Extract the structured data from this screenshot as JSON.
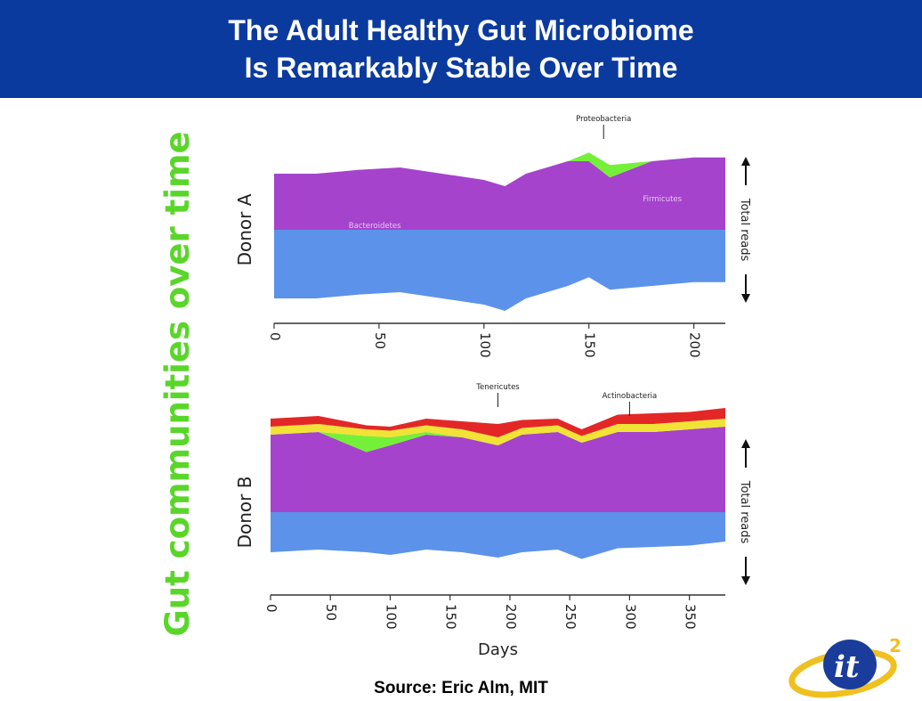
{
  "header": {
    "title_line1": "The Adult Healthy Gut Microbiome",
    "title_line2": "Is Remarkably Stable Over Time"
  },
  "side_label": "Gut communities over time",
  "source": "Source: Eric Alm, MIT",
  "logo": {
    "text": "it",
    "superscript": "2"
  },
  "colors": {
    "header_bg": "#0a3a9e",
    "side_label": "#5ad62a",
    "bacteroidetes": "#4a86e8",
    "firmicutes": "#9b2fc7",
    "proteobacteria": "#66ee22",
    "tenericutes": "#e01010",
    "actinobacteria": "#f0e020"
  },
  "chart_data": [
    {
      "type": "area",
      "panel_label": "Donor A",
      "right_label": "Total reads",
      "xlabel": "",
      "xlim": [
        0,
        215
      ],
      "x_ticks": [
        0,
        50,
        100,
        150,
        200
      ],
      "annotations": [
        {
          "text": "Proteobacteria",
          "x": 157,
          "arrow": true
        },
        {
          "text": "Firmicutes",
          "x": 185
        },
        {
          "text": "Bacteroidetes",
          "x": 48
        }
      ],
      "series": [
        {
          "name": "Bacteroidetes",
          "x": [
            0,
            20,
            40,
            60,
            80,
            100,
            110,
            120,
            130,
            140,
            150,
            160,
            180,
            200,
            215
          ],
          "values": [
            0.55,
            0.55,
            0.52,
            0.5,
            0.55,
            0.6,
            0.65,
            0.55,
            0.5,
            0.45,
            0.38,
            0.48,
            0.45,
            0.42,
            0.42
          ]
        },
        {
          "name": "Firmicutes",
          "x": [
            0,
            20,
            40,
            60,
            80,
            100,
            110,
            120,
            130,
            140,
            150,
            160,
            180,
            200,
            215
          ],
          "values": [
            0.45,
            0.45,
            0.48,
            0.5,
            0.45,
            0.4,
            0.35,
            0.45,
            0.5,
            0.55,
            0.55,
            0.42,
            0.55,
            0.58,
            0.58
          ]
        },
        {
          "name": "Proteobacteria",
          "x": [
            0,
            20,
            40,
            60,
            80,
            100,
            110,
            120,
            130,
            140,
            150,
            160,
            180,
            200,
            215
          ],
          "values": [
            0,
            0,
            0,
            0,
            0,
            0,
            0,
            0,
            0,
            0,
            0.07,
            0.1,
            0,
            0,
            0
          ]
        }
      ]
    },
    {
      "type": "area",
      "panel_label": "Donor B",
      "right_label": "Total reads",
      "xlabel": "Days",
      "xlim": [
        0,
        380
      ],
      "x_ticks": [
        0,
        50,
        100,
        150,
        200,
        250,
        300,
        350
      ],
      "annotations": [
        {
          "text": "Tenericutes",
          "x": 190,
          "arrow": true
        },
        {
          "text": "Actinobacteria",
          "x": 300,
          "arrow": true
        }
      ],
      "series": [
        {
          "name": "Bacteroidetes",
          "x": [
            0,
            40,
            80,
            100,
            130,
            160,
            190,
            210,
            240,
            260,
            290,
            320,
            350,
            380
          ],
          "values": [
            0.3,
            0.28,
            0.3,
            0.32,
            0.28,
            0.3,
            0.34,
            0.3,
            0.28,
            0.35,
            0.27,
            0.26,
            0.25,
            0.22
          ]
        },
        {
          "name": "Firmicutes",
          "x": [
            0,
            40,
            80,
            100,
            130,
            160,
            190,
            210,
            240,
            260,
            290,
            320,
            350,
            380
          ],
          "values": [
            0.58,
            0.6,
            0.45,
            0.5,
            0.58,
            0.56,
            0.5,
            0.58,
            0.6,
            0.52,
            0.6,
            0.6,
            0.62,
            0.64
          ]
        },
        {
          "name": "Proteobacteria",
          "x": [
            0,
            40,
            80,
            100,
            130,
            160,
            190,
            210,
            240,
            260,
            290,
            320,
            350,
            380
          ],
          "values": [
            0,
            0,
            0.12,
            0.06,
            0.02,
            0,
            0,
            0,
            0,
            0,
            0,
            0,
            0,
            0
          ]
        },
        {
          "name": "Actinobacteria",
          "x": [
            0,
            40,
            80,
            100,
            130,
            160,
            190,
            210,
            240,
            260,
            290,
            320,
            350,
            380
          ],
          "values": [
            0.06,
            0.06,
            0.05,
            0.05,
            0.05,
            0.06,
            0.06,
            0.05,
            0.05,
            0.05,
            0.06,
            0.06,
            0.06,
            0.06
          ]
        },
        {
          "name": "Tenericutes",
          "x": [
            0,
            40,
            80,
            100,
            130,
            160,
            190,
            210,
            240,
            260,
            290,
            320,
            350,
            380
          ],
          "values": [
            0.06,
            0.06,
            0.03,
            0.03,
            0.05,
            0.06,
            0.1,
            0.06,
            0.05,
            0.05,
            0.07,
            0.08,
            0.07,
            0.08
          ]
        }
      ]
    }
  ]
}
